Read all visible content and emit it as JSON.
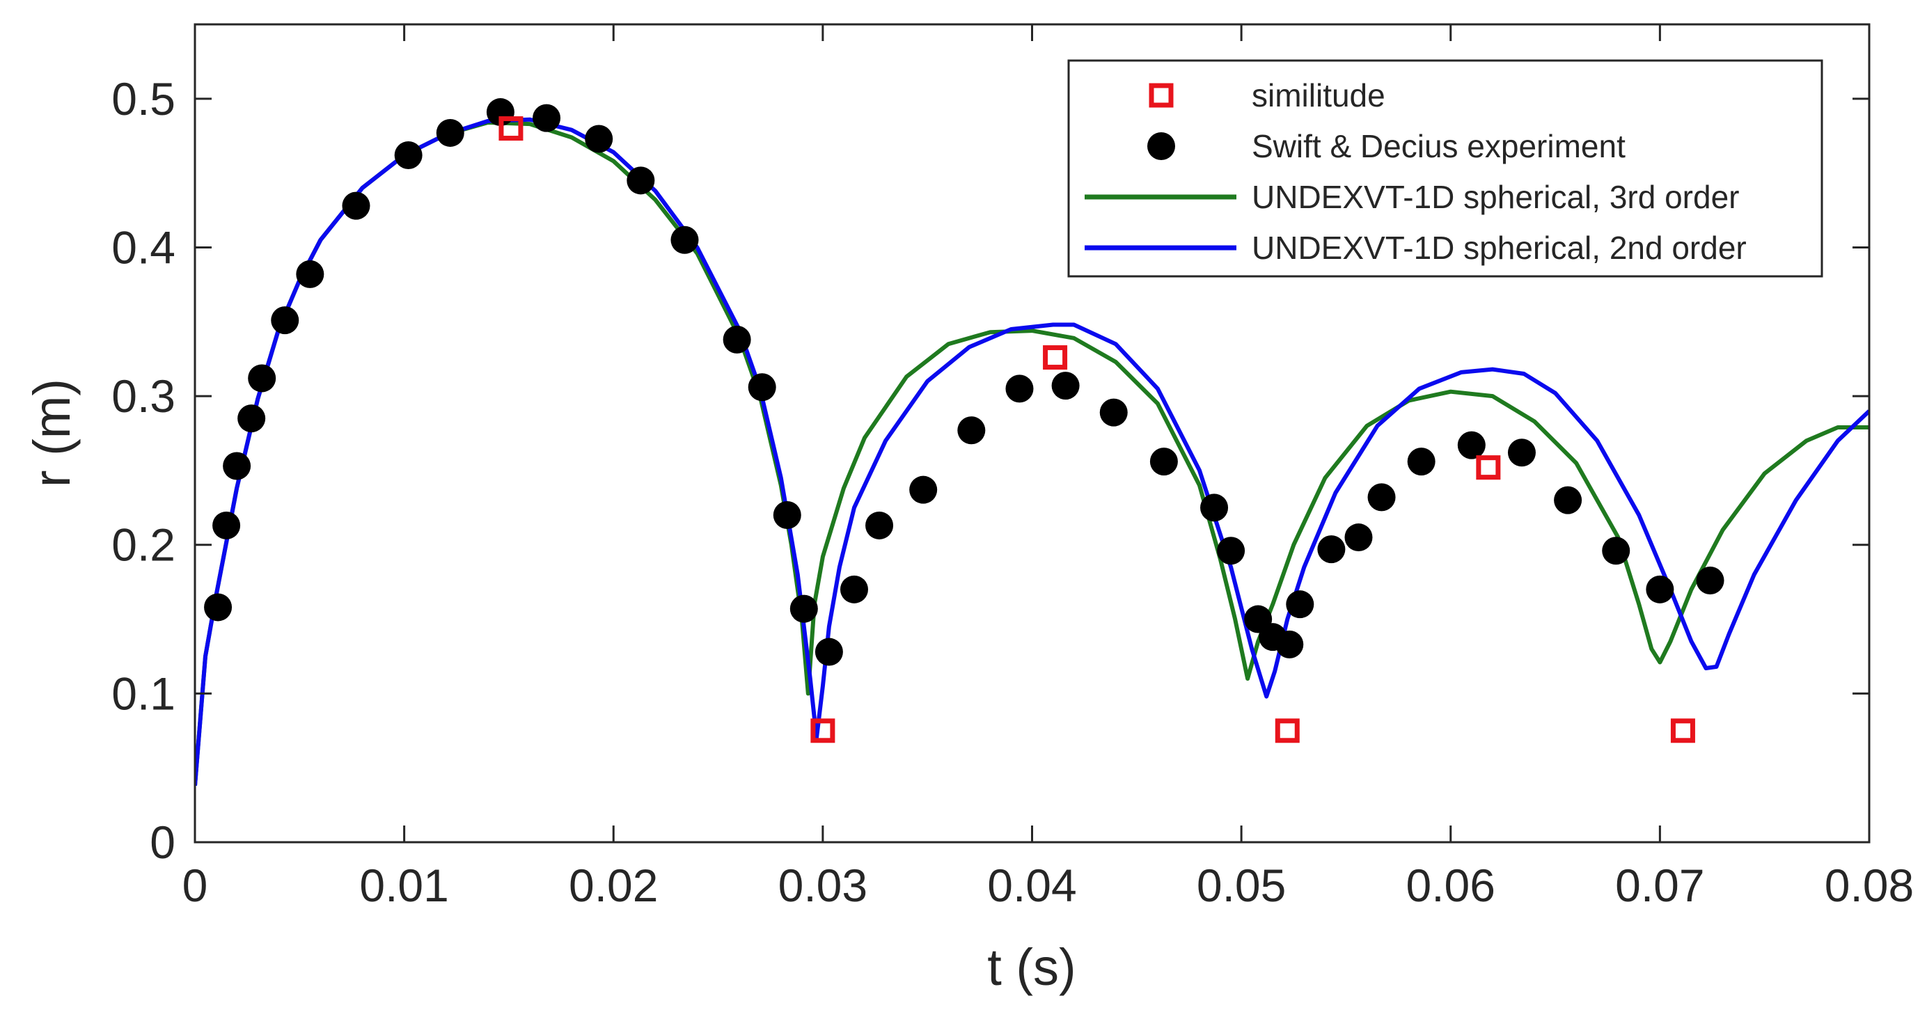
{
  "chart_data": {
    "type": "scatter",
    "title": "",
    "xlabel": "t (s)",
    "ylabel": "r (m)",
    "xlim": [
      0,
      0.08
    ],
    "ylim": [
      0,
      0.55
    ],
    "xticks": [
      0,
      0.01,
      0.02,
      0.03,
      0.04,
      0.05,
      0.06,
      0.07,
      0.08
    ],
    "yticks": [
      0,
      0.1,
      0.2,
      0.3,
      0.4,
      0.5
    ],
    "xtick_labels": [
      "0",
      "0.01",
      "0.02",
      "0.03",
      "0.04",
      "0.05",
      "0.06",
      "0.07",
      "0.08"
    ],
    "ytick_labels": [
      "0",
      "0.1",
      "0.2",
      "0.3",
      "0.4",
      "0.5"
    ],
    "grid": false,
    "legend_position": "top-right",
    "series": [
      {
        "name": "similitude",
        "kind": "marker",
        "marker": "open-square",
        "color": "#e8141c",
        "x": [
          0.0151,
          0.03,
          0.0411,
          0.0522,
          0.0618,
          0.0711
        ],
        "y": [
          0.48,
          0.075,
          0.326,
          0.075,
          0.252,
          0.075
        ]
      },
      {
        "name": "Swift & Decius experiment",
        "kind": "marker",
        "marker": "filled-circle",
        "color": "#000000",
        "x": [
          0.0011,
          0.0015,
          0.002,
          0.0027,
          0.0032,
          0.0043,
          0.0055,
          0.0077,
          0.0102,
          0.0122,
          0.0146,
          0.0168,
          0.0193,
          0.0213,
          0.0234,
          0.0259,
          0.0271,
          0.0283,
          0.0291,
          0.0303,
          0.0315,
          0.0327,
          0.0348,
          0.0371,
          0.0394,
          0.0416,
          0.0439,
          0.0463,
          0.0487,
          0.0495,
          0.0508,
          0.0515,
          0.0523,
          0.0528,
          0.0543,
          0.0556,
          0.0567,
          0.0586,
          0.061,
          0.0634,
          0.0656,
          0.0679,
          0.07,
          0.0724
        ],
        "y": [
          0.158,
          0.213,
          0.253,
          0.285,
          0.312,
          0.351,
          0.382,
          0.428,
          0.462,
          0.477,
          0.491,
          0.487,
          0.473,
          0.445,
          0.405,
          0.338,
          0.306,
          0.22,
          0.157,
          0.128,
          0.17,
          0.213,
          0.237,
          0.277,
          0.305,
          0.307,
          0.289,
          0.256,
          0.225,
          0.196,
          0.15,
          0.138,
          0.133,
          0.16,
          0.197,
          0.205,
          0.232,
          0.256,
          0.267,
          0.262,
          0.23,
          0.196,
          0.17,
          0.176
        ]
      },
      {
        "name": "UNDEXVT-1D spherical, 3rd order",
        "kind": "line",
        "color": "#1f7a1f",
        "x": [
          0.0,
          0.0005,
          0.001,
          0.002,
          0.003,
          0.004,
          0.005,
          0.006,
          0.008,
          0.01,
          0.012,
          0.014,
          0.016,
          0.018,
          0.02,
          0.022,
          0.024,
          0.026,
          0.027,
          0.028,
          0.0285,
          0.029,
          0.0293,
          0.0296,
          0.03,
          0.031,
          0.032,
          0.034,
          0.036,
          0.038,
          0.04,
          0.042,
          0.044,
          0.046,
          0.048,
          0.049,
          0.0497,
          0.0503,
          0.0508,
          0.0515,
          0.0525,
          0.054,
          0.056,
          0.058,
          0.06,
          0.062,
          0.064,
          0.066,
          0.068,
          0.069,
          0.0696,
          0.07,
          0.0705,
          0.0715,
          0.073,
          0.075,
          0.077,
          0.0785,
          0.08
        ],
        "y": [
          0.038,
          0.125,
          0.165,
          0.238,
          0.298,
          0.345,
          0.378,
          0.405,
          0.44,
          0.462,
          0.476,
          0.484,
          0.483,
          0.474,
          0.458,
          0.432,
          0.396,
          0.34,
          0.3,
          0.24,
          0.2,
          0.15,
          0.1,
          0.16,
          0.192,
          0.238,
          0.272,
          0.313,
          0.335,
          0.343,
          0.344,
          0.339,
          0.323,
          0.295,
          0.24,
          0.19,
          0.15,
          0.11,
          0.135,
          0.16,
          0.2,
          0.245,
          0.28,
          0.297,
          0.303,
          0.3,
          0.283,
          0.255,
          0.205,
          0.16,
          0.13,
          0.121,
          0.135,
          0.17,
          0.21,
          0.248,
          0.27,
          0.279,
          0.279
        ]
      },
      {
        "name": "UNDEXVT-1D spherical, 2nd order",
        "kind": "line",
        "color": "#0a0aee",
        "x": [
          0.0,
          0.0005,
          0.001,
          0.002,
          0.003,
          0.004,
          0.005,
          0.006,
          0.008,
          0.01,
          0.012,
          0.014,
          0.016,
          0.018,
          0.02,
          0.022,
          0.024,
          0.026,
          0.027,
          0.028,
          0.0288,
          0.0294,
          0.0297,
          0.03,
          0.0303,
          0.0308,
          0.0315,
          0.033,
          0.035,
          0.037,
          0.039,
          0.041,
          0.042,
          0.044,
          0.046,
          0.048,
          0.0495,
          0.0505,
          0.0512,
          0.0516,
          0.0522,
          0.053,
          0.0545,
          0.0565,
          0.0585,
          0.0605,
          0.062,
          0.0635,
          0.065,
          0.067,
          0.069,
          0.0705,
          0.0715,
          0.0722,
          0.0727,
          0.0733,
          0.0745,
          0.0765,
          0.0785,
          0.08
        ],
        "y": [
          0.038,
          0.125,
          0.165,
          0.238,
          0.298,
          0.345,
          0.378,
          0.405,
          0.44,
          0.462,
          0.476,
          0.485,
          0.486,
          0.479,
          0.464,
          0.438,
          0.4,
          0.345,
          0.305,
          0.245,
          0.18,
          0.11,
          0.07,
          0.105,
          0.145,
          0.185,
          0.225,
          0.27,
          0.31,
          0.333,
          0.345,
          0.348,
          0.348,
          0.335,
          0.305,
          0.25,
          0.185,
          0.13,
          0.098,
          0.115,
          0.15,
          0.185,
          0.235,
          0.28,
          0.305,
          0.316,
          0.318,
          0.315,
          0.302,
          0.27,
          0.22,
          0.17,
          0.135,
          0.117,
          0.118,
          0.14,
          0.18,
          0.23,
          0.27,
          0.29
        ]
      }
    ]
  }
}
